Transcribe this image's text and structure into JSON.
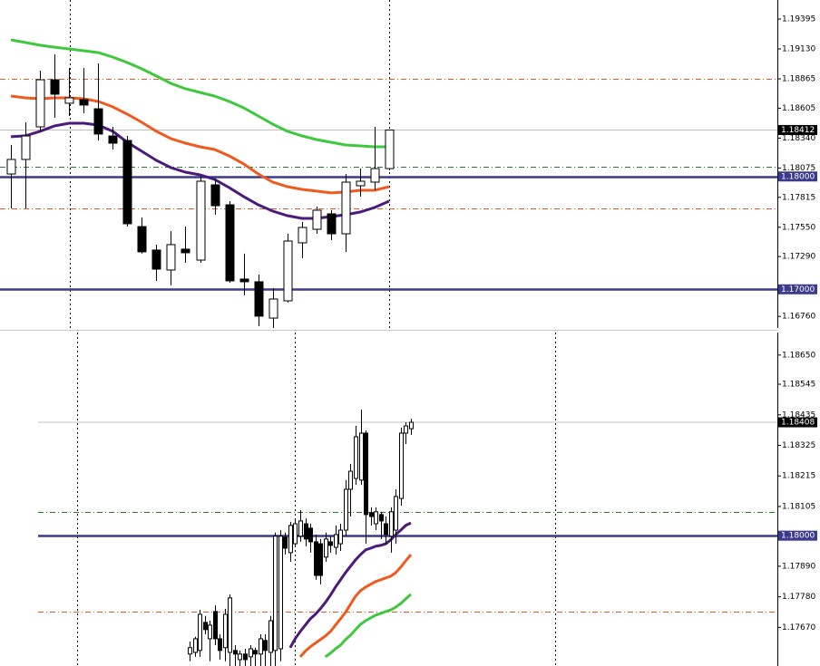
{
  "chart_data": [
    {
      "type": "candlestick",
      "ylim": [
        1.16657,
        1.19564
      ],
      "yticks": [
        1.19395,
        {
          "value": 1.1913,
          "label": "1.19130"
        },
        1.18865,
        1.18605,
        {
          "value": 1.1834,
          "label": "1.18340"
        },
        1.18075,
        1.17815,
        {
          "value": 1.1755,
          "label": "1.17550"
        },
        {
          "value": 1.1729,
          "label": "1.17290"
        },
        {
          "value": 1.1676,
          "label": "1.16760"
        }
      ],
      "last_price": 1.18412,
      "levels": [
        {
          "value": 1.18,
          "label": "1.18000",
          "color": "#3c3a8c",
          "style": "solid"
        },
        {
          "value": 1.17,
          "label": "1.17000",
          "color": "#3c3a8c",
          "style": "solid"
        },
        {
          "value": 1.18865,
          "color": "#e05a2a",
          "style": "dashdot"
        },
        {
          "value": 1.18087,
          "color": "#2a7a2a",
          "style": "dashdot"
        },
        {
          "value": 1.17717,
          "color": "#e05a2a",
          "style": "dashdot"
        }
      ],
      "ohlc": [
        [
          1.18022,
          1.18279,
          1.17717,
          1.18151
        ],
        [
          1.18151,
          1.1848,
          1.17717,
          1.18359
        ],
        [
          1.1844,
          1.18938,
          1.184,
          1.18857
        ],
        [
          1.18857,
          1.19082,
          1.1852,
          1.18729
        ],
        [
          1.18649,
          1.18962,
          1.18536,
          1.18697
        ],
        [
          1.18681,
          1.18962,
          1.1856,
          1.18633
        ],
        [
          1.186,
          1.19002,
          1.18319,
          1.18376
        ],
        [
          1.18359,
          1.1844,
          1.18239,
          1.18295
        ],
        [
          1.18319,
          1.18359,
          1.17556,
          1.17581
        ],
        [
          1.17556,
          1.17637,
          1.17316,
          1.17332
        ],
        [
          1.17348,
          1.17396,
          1.17075,
          1.17179
        ],
        [
          1.17171,
          1.17516,
          1.17035,
          1.17396
        ],
        [
          1.17356,
          1.17556,
          1.17235,
          1.17324
        ],
        [
          1.17259,
          1.17998,
          1.17235,
          1.17958
        ],
        [
          1.17926,
          1.17974,
          1.17661,
          1.17741
        ],
        [
          1.17749,
          1.17781,
          1.17059,
          1.17075
        ],
        [
          1.17091,
          1.17316,
          1.16946,
          1.17067
        ],
        [
          1.17067,
          1.17131,
          1.16673,
          1.16762
        ],
        [
          1.16745,
          1.1701,
          1.16657,
          1.16914
        ],
        [
          1.16898,
          1.17492,
          1.16882,
          1.17428
        ],
        [
          1.17412,
          1.17597,
          1.17275,
          1.17548
        ],
        [
          1.17532,
          1.17733,
          1.17492,
          1.17701
        ],
        [
          1.17669,
          1.17701,
          1.17436,
          1.17492
        ],
        [
          1.17492,
          1.18022,
          1.17332,
          1.1795
        ],
        [
          1.17918,
          1.1807,
          1.17821,
          1.17958
        ],
        [
          1.1795,
          1.1844,
          1.17878,
          1.1807
        ],
        [
          1.1807,
          1.18412,
          1.18054,
          1.18412
        ]
      ],
      "moving_averages": [
        {
          "color": "#3ec83e",
          "values": [
            1.19211,
            1.19187,
            1.19163,
            1.19146,
            1.1913,
            1.19114,
            1.19098,
            1.19058,
            1.1901,
            1.18954,
            1.1889,
            1.18825,
            1.18777,
            1.18745,
            1.18713,
            1.18665,
            1.18608,
            1.18536,
            1.18464,
            1.184,
            1.1836,
            1.18327,
            1.18303,
            1.18279,
            1.18271,
            1.18263,
            1.18263
          ]
        },
        {
          "color": "#f05a1e",
          "values": [
            1.18713,
            1.18697,
            1.18689,
            1.18697,
            1.18697,
            1.18689,
            1.18665,
            1.18617,
            1.18552,
            1.1848,
            1.184,
            1.18335,
            1.18295,
            1.18263,
            1.18239,
            1.18183,
            1.18111,
            1.18022,
            1.1795,
            1.1791,
            1.17886,
            1.1787,
            1.17854,
            1.17862,
            1.17878,
            1.17878,
            1.1791
          ]
        },
        {
          "color": "#4b1a7a",
          "values": [
            1.18352,
            1.1836,
            1.184,
            1.18448,
            1.18472,
            1.18472,
            1.18456,
            1.184,
            1.18303,
            1.18223,
            1.18143,
            1.18078,
            1.18038,
            1.18014,
            1.17974,
            1.17902,
            1.17822,
            1.17749,
            1.17693,
            1.17653,
            1.17629,
            1.17629,
            1.17645,
            1.17661,
            1.17685,
            1.17725,
            1.17781
          ]
        }
      ]
    },
    {
      "type": "candlestick",
      "ylim": [
        1.17531,
        1.18731
      ],
      "yticks": [
        {
          "value": 1.1865,
          "label": "1.18650"
        },
        1.18545,
        1.18435,
        1.18325,
        1.18215,
        1.18105,
        {
          "value": 1.1789,
          "label": "1.17890"
        },
        {
          "value": 1.1778,
          "label": "1.17780"
        },
        {
          "value": 1.1767,
          "label": "1.17670"
        }
      ],
      "last_price": 1.18408,
      "levels": [
        {
          "value": 1.18,
          "label": "1.18000",
          "color": "#3c3a8c",
          "style": "solid"
        },
        {
          "value": 1.18086,
          "color": "#2a7a2a",
          "style": "dashdot"
        },
        {
          "value": 1.17727,
          "color": "#e05a2a",
          "style": "dashdot"
        }
      ],
      "ohlc": [
        [
          1.17574,
          1.17619,
          1.17548,
          1.17597
        ],
        [
          1.1758,
          1.17636,
          1.17564,
          1.17629
        ],
        [
          1.17587,
          1.17733,
          1.17564,
          1.17717
        ],
        [
          1.17688,
          1.17711,
          1.17645,
          1.17662
        ],
        [
          1.17629,
          1.17694,
          1.17548,
          1.17678
        ],
        [
          1.17727,
          1.1775,
          1.17606,
          1.17629
        ],
        [
          1.17629,
          1.17645,
          1.17554,
          1.17587
        ],
        [
          1.17597,
          1.17737,
          1.17548,
          1.17717
        ],
        [
          1.1758,
          1.17789,
          1.17531,
          1.17776
        ],
        [
          1.17587,
          1.17606,
          1.17531,
          1.17574
        ],
        [
          1.17554,
          1.17587,
          1.17531,
          1.17574
        ],
        [
          1.17574,
          1.17593,
          1.17531,
          1.17554
        ],
        [
          1.17564,
          1.17606,
          1.17531,
          1.17593
        ],
        [
          1.17587,
          1.17597,
          1.17531,
          1.17574
        ],
        [
          1.17574,
          1.17645,
          1.17531,
          1.17629
        ],
        [
          1.17623,
          1.17645,
          1.17531,
          1.17587
        ],
        [
          1.1758,
          1.17711,
          1.17531,
          1.17694
        ],
        [
          1.17587,
          1.18011,
          1.17531,
          1.17998
        ],
        [
          1.17593,
          1.1802,
          1.17548,
          1.17998
        ],
        [
          1.17994,
          1.18011,
          1.17932,
          1.17955
        ],
        [
          1.17939,
          1.1805,
          1.17906,
          1.18037
        ],
        [
          1.17971,
          1.18056,
          1.17962,
          1.18043
        ],
        [
          1.17998,
          1.18092,
          1.17978,
          1.18053
        ],
        [
          1.18043,
          1.18063,
          1.17962,
          1.17988
        ],
        [
          1.18027,
          1.18043,
          1.17939,
          1.17978
        ],
        [
          1.17978,
          1.18004,
          1.17841,
          1.17857
        ],
        [
          1.17971,
          1.17988,
          1.17825,
          1.17857
        ],
        [
          1.17923,
          1.18011,
          1.17906,
          1.17988
        ],
        [
          1.17978,
          1.17998,
          1.17939,
          1.17965
        ],
        [
          1.17958,
          1.18037,
          1.17932,
          1.18004
        ],
        [
          1.17971,
          1.18043,
          1.17945,
          1.1802
        ],
        [
          1.1802,
          1.182,
          1.17998,
          1.18167
        ],
        [
          1.18167,
          1.18258,
          1.18069,
          1.18232
        ],
        [
          1.18206,
          1.18395,
          1.18183,
          1.18356
        ],
        [
          1.182,
          1.18454,
          1.18183,
          1.18369
        ],
        [
          1.18369,
          1.18379,
          1.17971,
          1.18076
        ],
        [
          1.18082,
          1.18102,
          1.18037,
          1.18069
        ],
        [
          1.18043,
          1.18102,
          1.1802,
          1.18086
        ],
        [
          1.18076,
          1.18086,
          1.17988,
          1.18053
        ],
        [
          1.18043,
          1.18069,
          1.17971,
          1.18004
        ],
        [
          1.17998,
          1.18102,
          1.17939,
          1.18086
        ],
        [
          1.1802,
          1.18167,
          1.17971,
          1.18141
        ],
        [
          1.18134,
          1.18389,
          1.18108,
          1.18369
        ],
        [
          1.18369,
          1.18408,
          1.1833,
          1.18395
        ],
        [
          1.18385,
          1.18421,
          1.18363,
          1.18408
        ]
      ],
      "moving_averages": [
        {
          "color": "#3ec83e",
          "values": [
            null,
            null,
            null,
            null,
            null,
            null,
            null,
            null,
            null,
            null,
            null,
            null,
            null,
            null,
            null,
            null,
            null,
            null,
            null,
            null,
            null,
            null,
            null,
            null,
            null,
            null,
            null,
            1.17564,
            1.17577,
            1.17593,
            1.17606,
            1.17626,
            1.17642,
            1.17662,
            1.17681,
            1.17694,
            1.17704,
            1.17714,
            1.1772,
            1.17727,
            1.17733,
            1.17743,
            1.17756,
            1.17773,
            1.17789
          ]
        },
        {
          "color": "#f05a1e",
          "values": [
            null,
            null,
            null,
            null,
            null,
            null,
            null,
            null,
            null,
            null,
            null,
            null,
            null,
            null,
            null,
            null,
            null,
            null,
            null,
            null,
            null,
            null,
            1.17564,
            1.17584,
            1.176,
            1.17613,
            1.17626,
            1.17639,
            1.17655,
            1.17678,
            1.17701,
            1.17724,
            1.17753,
            1.17782,
            1.17802,
            1.17815,
            1.17825,
            1.17835,
            1.17841,
            1.17848,
            1.17854,
            1.17867,
            1.17887,
            1.1791,
            1.17932
          ]
        },
        {
          "color": "#4b1a7a",
          "values": [
            null,
            null,
            null,
            null,
            null,
            null,
            null,
            null,
            null,
            null,
            null,
            null,
            null,
            null,
            null,
            null,
            null,
            null,
            null,
            null,
            1.17597,
            1.17629,
            1.17655,
            1.17678,
            1.17701,
            1.17717,
            1.17737,
            1.1776,
            1.17786,
            1.17815,
            1.17841,
            1.17867,
            1.1789,
            1.17913,
            1.17932,
            1.17949,
            1.17955,
            1.17962,
            1.17965,
            1.17971,
            1.17985,
            1.18004,
            1.1802,
            1.18037,
            1.18046
          ]
        }
      ]
    }
  ]
}
